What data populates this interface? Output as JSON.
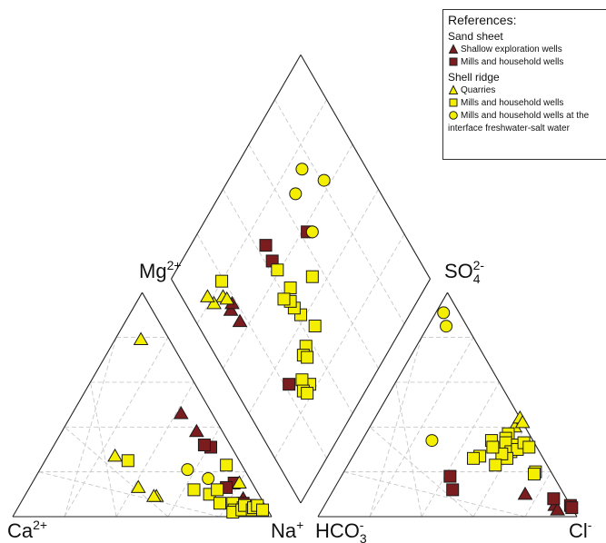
{
  "chart_data": {
    "type": "scatter",
    "subtype": "piper-diagram",
    "axis_labels": {
      "cation_left": {
        "base": "Ca",
        "sup": "2+"
      },
      "cation_right": {
        "base": "Na",
        "sup": "+"
      },
      "diamond_top_left": {
        "base": "Mg",
        "sup": "2+"
      },
      "diamond_top_right": {
        "base": "SO",
        "sub": "4",
        "sup": "2-"
      },
      "anion_left": {
        "base": "HCO",
        "sub": "3",
        "sup": "-"
      },
      "anion_right": {
        "base": "Cl",
        "sup": "-"
      }
    },
    "grid": true,
    "legend_position": "top-right",
    "legend": {
      "title": "References:",
      "groups": [
        {
          "name": "Sand sheet",
          "items": [
            {
              "label": "Shallow exploration wells",
              "marker": "triangle",
              "color": "#7b1d1f"
            },
            {
              "label": "Mills and household wells",
              "marker": "square",
              "color": "#7b1d1f"
            }
          ]
        },
        {
          "name": "Shell ridge",
          "items": [
            {
              "label": "Quarries",
              "marker": "triangle",
              "color": "#f4ee00"
            },
            {
              "label": "Mills and household wells",
              "marker": "square",
              "color": "#f4ee00"
            },
            {
              "label": "Mills and household wells at the interface freshwater-salt water",
              "marker": "circle",
              "color": "#f4ee00"
            }
          ]
        }
      ]
    },
    "series": [
      {
        "name": "Shallow exploration wells",
        "marker": "triangle",
        "color": "#7b1d1f",
        "cations": [
          [
            10,
            38,
            52
          ],
          [
            12,
            46,
            42
          ],
          [
            8,
            5,
            87
          ],
          [
            7,
            8,
            85
          ]
        ],
        "anions": [
          [
            15,
            10,
            75
          ],
          [
            6,
            5,
            89
          ],
          [
            6,
            3,
            91
          ]
        ],
        "diamond": [
          [
            17,
            64
          ],
          [
            16,
            70
          ],
          [
            18,
            71
          ]
        ]
      },
      {
        "name": "Mills and household wells",
        "marker": "square",
        "color": "#7b1d1f",
        "cations": [
          [
            8,
            31,
            61
          ],
          [
            10,
            32,
            58
          ],
          [
            7,
            15,
            78
          ],
          [
            11,
            13,
            76
          ],
          [
            5,
            3,
            92
          ],
          [
            6,
            5,
            89
          ],
          [
            8,
            6,
            86
          ]
        ],
        "anions": [
          [
            40,
            18,
            42
          ],
          [
            42,
            12,
            46
          ],
          [
            0,
            5,
            95
          ],
          [
            0,
            4,
            96
          ],
          [
            5,
            8,
            87
          ]
        ],
        "diamond": [
          [
            43,
            65
          ],
          [
            44,
            71
          ],
          [
            63,
            58
          ],
          [
            22,
            31
          ]
        ]
      },
      {
        "name": "Quarries",
        "marker": "triangle",
        "color": "#f4ee00",
        "cations": [
          [
            40,
            9,
            51
          ],
          [
            41,
            9,
            50
          ],
          [
            45,
            13,
            42
          ],
          [
            47,
            27,
            26
          ],
          [
            11,
            79,
            10
          ],
          [
            5,
            15,
            80
          ]
        ],
        "anions": [
          [
            4,
            40,
            56
          ],
          [
            0,
            44,
            56
          ],
          [
            0,
            42,
            58
          ]
        ],
        "diamond": [
          [
            16,
            76
          ],
          [
            17,
            74
          ],
          [
            11,
            78
          ],
          [
            10,
            82
          ]
        ]
      },
      {
        "name": "Mills and household wells",
        "marker": "square",
        "color": "#f4ee00",
        "cations": [
          [
            43,
            25,
            32
          ],
          [
            24,
            12,
            64
          ],
          [
            19,
            10,
            71
          ],
          [
            15,
            12,
            73
          ],
          [
            17,
            6,
            77
          ],
          [
            12,
            6,
            82
          ],
          [
            13,
            3,
            84
          ],
          [
            14,
            2,
            84
          ],
          [
            9,
            4,
            87
          ],
          [
            10,
            3,
            87
          ],
          [
            8,
            5,
            87
          ],
          [
            6,
            3,
            91
          ],
          [
            5,
            4,
            91
          ],
          [
            3,
            5,
            92
          ],
          [
            2,
            3,
            95
          ],
          [
            6,
            23,
            71
          ]
        ],
        "anions": [
          [
            8,
            37,
            55
          ],
          [
            10,
            35,
            55
          ],
          [
            11,
            33,
            56
          ],
          [
            7,
            32,
            61
          ],
          [
            11,
            29,
            60
          ],
          [
            8,
            30,
            62
          ],
          [
            14,
            26,
            60
          ],
          [
            16,
            34,
            50
          ],
          [
            15,
            28,
            57
          ],
          [
            17,
            31,
            52
          ],
          [
            24,
            27,
            49
          ],
          [
            20,
            23,
            57
          ],
          [
            27,
            26,
            47
          ],
          [
            4,
            33,
            63
          ],
          [
            3,
            31,
            66
          ],
          [
            6,
            20,
            74
          ],
          [
            7,
            19,
            74
          ]
        ],
        "diamond": [
          [
            19,
            80
          ],
          [
            42,
            42
          ],
          [
            41,
            46
          ],
          [
            41,
            49
          ],
          [
            44,
            52
          ],
          [
            39,
            52
          ],
          [
            43,
            61
          ],
          [
            55,
            46
          ],
          [
            45,
            34
          ],
          [
            37,
            33
          ],
          [
            34,
            32
          ],
          [
            35,
            30
          ],
          [
            30,
            23
          ],
          [
            28,
            27
          ],
          [
            26,
            24
          ],
          [
            27,
            22
          ]
        ]
      },
      {
        "name": "Mills and household wells at the interface freshwater-salt water",
        "marker": "circle",
        "color": "#f4ee00",
        "cations": [
          [
            22,
            21,
            57
          ],
          [
            16,
            17,
            67
          ]
        ],
        "anions": [
          [
            39,
            34,
            27
          ],
          [
            8,
            85,
            7
          ],
          [
            6,
            91,
            3
          ]
        ],
        "diamond": [
          [
            67,
            71
          ],
          [
            81,
            63
          ],
          [
            75,
            74
          ],
          [
            65,
            56
          ]
        ]
      }
    ]
  }
}
